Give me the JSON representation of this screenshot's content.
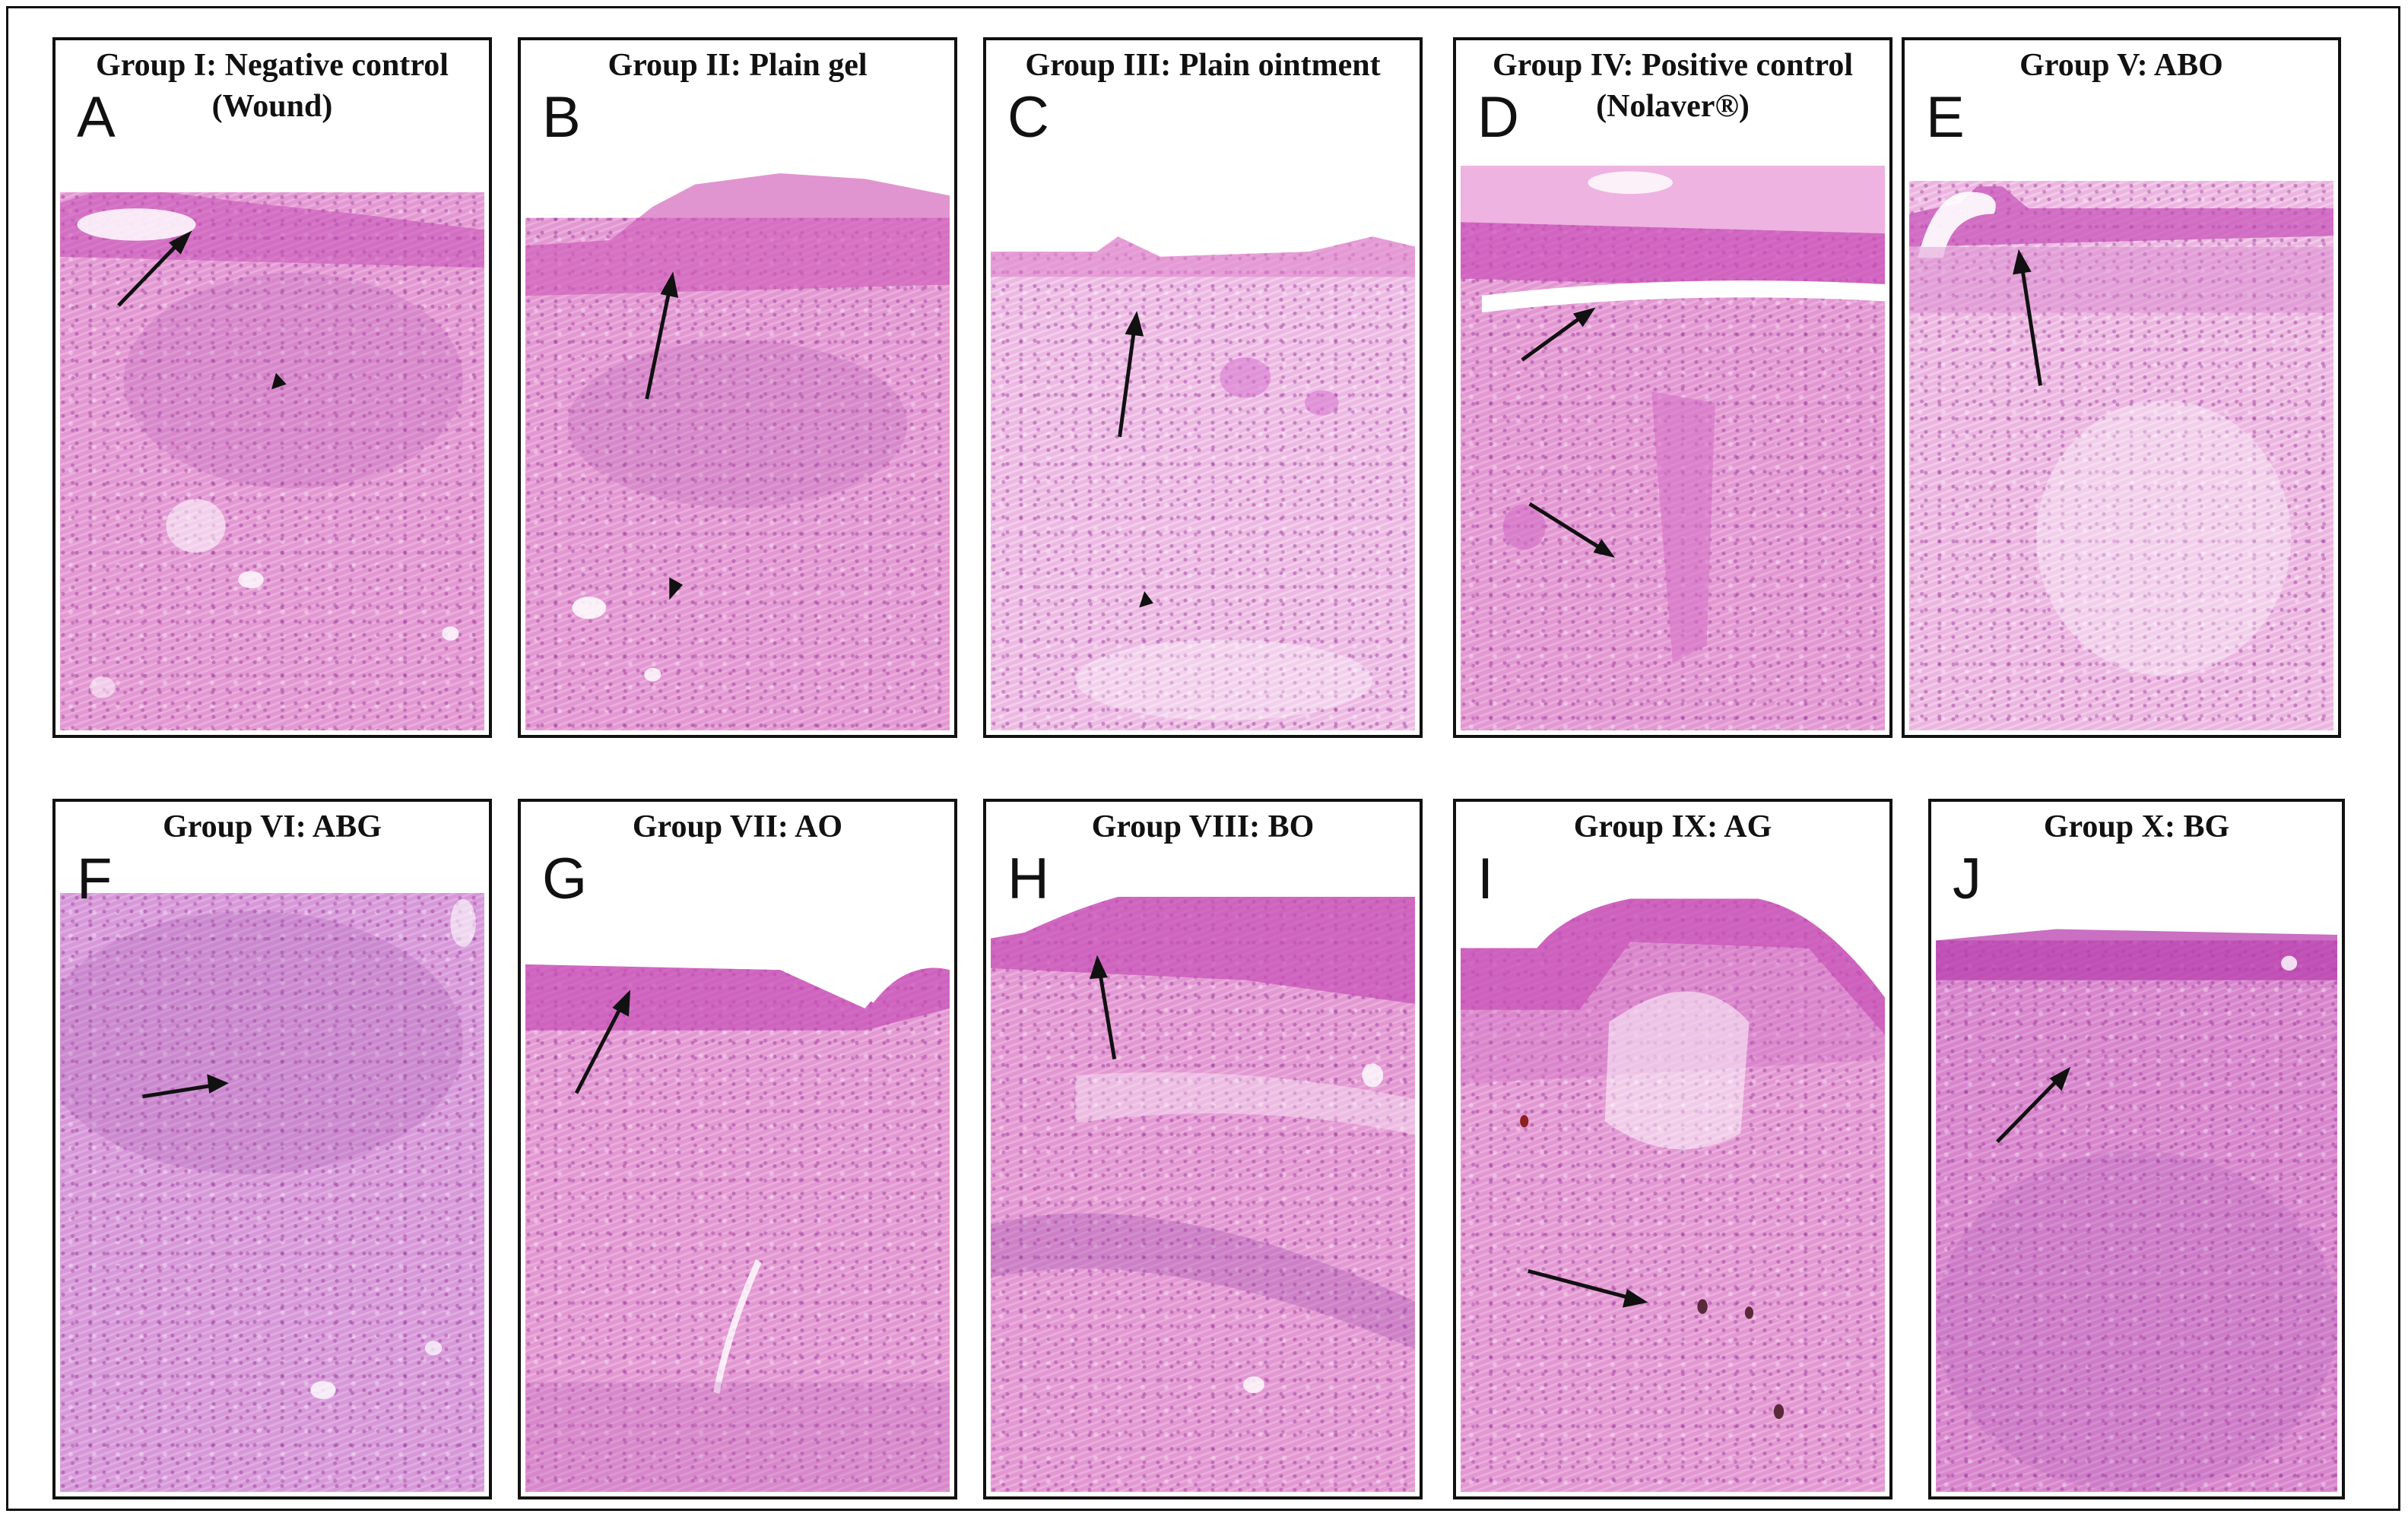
{
  "panels": [
    {
      "letter": "A",
      "title_line1": "Group I: Negative control",
      "title_line2": "(Wound)"
    },
    {
      "letter": "B",
      "title_line1": "Group II: Plain gel",
      "title_line2": ""
    },
    {
      "letter": "C",
      "title_line1": "Group III: Plain ointment",
      "title_line2": ""
    },
    {
      "letter": "D",
      "title_line1": "Group IV: Positive control",
      "title_line2": "(Nolaver®)"
    },
    {
      "letter": "E",
      "title_line1": "Group V: ABO",
      "title_line2": ""
    },
    {
      "letter": "F",
      "title_line1": "Group VI: ABG",
      "title_line2": ""
    },
    {
      "letter": "G",
      "title_line1": "Group VII: AO",
      "title_line2": ""
    },
    {
      "letter": "H",
      "title_line1": "Group VIII: BO",
      "title_line2": ""
    },
    {
      "letter": "I",
      "title_line1": "Group IX: AG",
      "title_line2": ""
    },
    {
      "letter": "J",
      "title_line1": "Group X: BG",
      "title_line2": ""
    }
  ],
  "colors": {
    "border": "#111111",
    "tissue_pink": "#e6a0d6",
    "surface_magenta": "#c64fb6",
    "nuclei_purple": "#8d3a9a",
    "arrow": "#111111"
  }
}
